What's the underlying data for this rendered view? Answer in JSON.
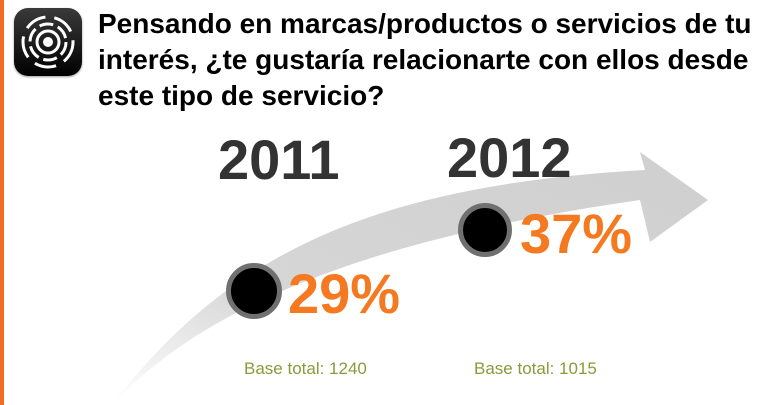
{
  "question": "Pensando en marcas/productos o servicios de tu interés, ¿te gustaría relacionarte con ellos desde este tipo de servicio?",
  "colors": {
    "accent": "#f47920",
    "year_text": "#333333",
    "base_text": "#8a9a3a",
    "arrow": "#d9d9d9"
  },
  "icons": {
    "app": "broadcast-signal-icon"
  },
  "years": [
    {
      "label": "2011",
      "value": "29%",
      "base": "Base total: 1240"
    },
    {
      "label": "2012",
      "value": "37%",
      "base": "Base total: 1015"
    }
  ]
}
